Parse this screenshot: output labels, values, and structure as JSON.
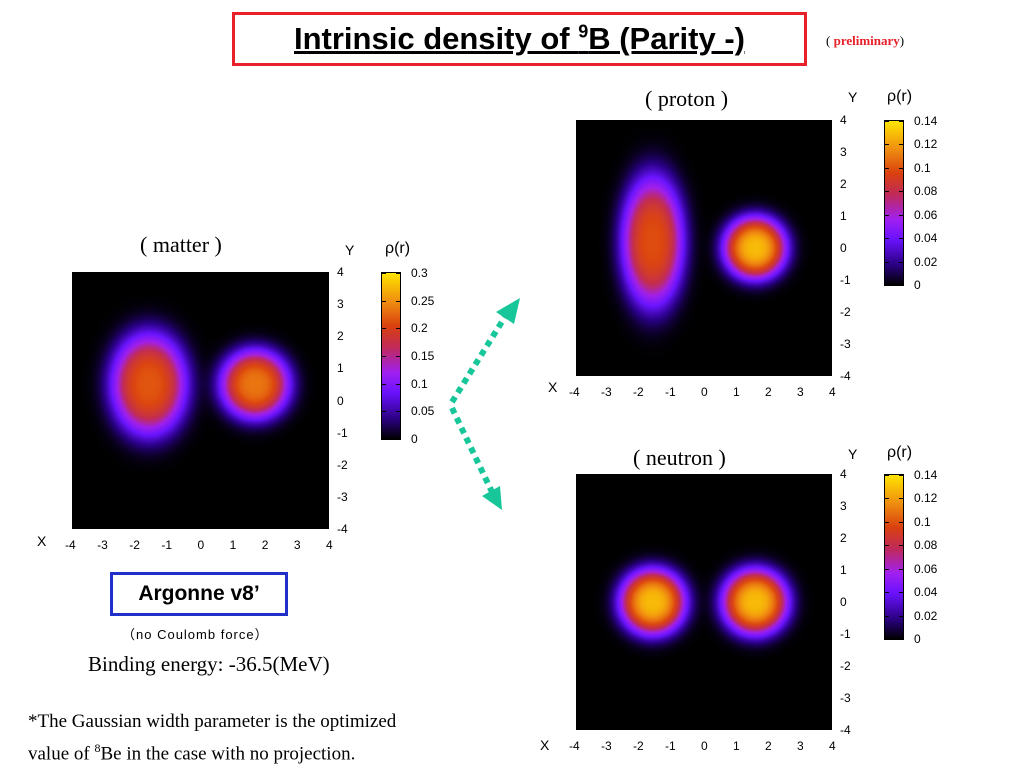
{
  "title": {
    "prefix": "Intrinsic density of ",
    "superscript": "9",
    "suffix": "B (Parity -)"
  },
  "preliminary": {
    "open": "( ",
    "word": "preliminary",
    "close": ")"
  },
  "interaction": {
    "name": "Argonne v8",
    "prime": "’",
    "note": "（no  Coulomb  force）"
  },
  "binding_energy": "Binding energy: -36.5(MeV)",
  "footnote": {
    "line1": "*The Gaussian width parameter is the optimized",
    "line2_prefix": "value of ",
    "line2_sup": "8",
    "line2_suffix": "Be in the case with no projection."
  },
  "colors": {
    "title_border": "#e8202a",
    "argonne_border": "#2030c8",
    "arrow": "#17c79a"
  },
  "chart_data": [
    {
      "type": "heatmap",
      "id": "matter",
      "title": "( matter )",
      "xlabel": "X",
      "ylabel": "Y",
      "xlim": [
        -4,
        4
      ],
      "ylim": [
        -4,
        4
      ],
      "xticks": [
        "-4",
        "-3",
        "-2",
        "-1",
        "0",
        "1",
        "2",
        "3",
        "4"
      ],
      "yticks": [
        "4",
        "3",
        "2",
        "1",
        "0",
        "-1",
        "-2",
        "-3",
        "-4"
      ],
      "colorbar_label": "ρ(r)",
      "colorbar_range": [
        0,
        0.3
      ],
      "colorbar_ticks": [
        "0.3",
        "0.25",
        "0.2",
        "0.15",
        "0.1",
        "0.05",
        "0"
      ],
      "clusters": [
        {
          "x": -1.6,
          "y": 0.5,
          "peak": 0.22,
          "sx": 1.15,
          "sy": 1.55
        },
        {
          "x": 1.7,
          "y": 0.5,
          "peak": 0.24,
          "sx": 1.05,
          "sy": 1.05
        }
      ]
    },
    {
      "type": "heatmap",
      "id": "proton",
      "title": "( proton )",
      "xlabel": "X",
      "ylabel": "Y",
      "xlim": [
        -4,
        4
      ],
      "ylim": [
        -4,
        4
      ],
      "xticks": [
        "-4",
        "-3",
        "-2",
        "-1",
        "0",
        "1",
        "2",
        "3",
        "4"
      ],
      "yticks": [
        "4",
        "3",
        "2",
        "1",
        "0",
        "-1",
        "-2",
        "-3",
        "-4"
      ],
      "colorbar_label": "ρ(r)",
      "colorbar_range": [
        0,
        0.14
      ],
      "colorbar_ticks": [
        "0.14",
        "0.12",
        "0.1",
        "0.08",
        "0.06",
        "0.04",
        "0.02",
        "0"
      ],
      "clusters": [
        {
          "x": -1.6,
          "y": 0.2,
          "peak": 0.1,
          "sx": 0.95,
          "sy": 2.0
        },
        {
          "x": 1.6,
          "y": 0.0,
          "peak": 0.13,
          "sx": 0.95,
          "sy": 0.95
        }
      ]
    },
    {
      "type": "heatmap",
      "id": "neutron",
      "title": "( neutron )",
      "xlabel": "X",
      "ylabel": "Y",
      "xlim": [
        -4,
        4
      ],
      "ylim": [
        -4,
        4
      ],
      "xticks": [
        "-4",
        "-3",
        "-2",
        "-1",
        "0",
        "1",
        "2",
        "3",
        "4"
      ],
      "yticks": [
        "4",
        "3",
        "2",
        "1",
        "0",
        "-1",
        "-2",
        "-3",
        "-4"
      ],
      "colorbar_label": "ρ(r)",
      "colorbar_range": [
        0,
        0.14
      ],
      "colorbar_ticks": [
        "0.14",
        "0.12",
        "0.1",
        "0.08",
        "0.06",
        "0.04",
        "0.02",
        "0"
      ],
      "clusters": [
        {
          "x": -1.6,
          "y": 0.0,
          "peak": 0.13,
          "sx": 1.0,
          "sy": 1.0
        },
        {
          "x": 1.6,
          "y": 0.0,
          "peak": 0.13,
          "sx": 1.0,
          "sy": 1.0
        }
      ]
    }
  ]
}
